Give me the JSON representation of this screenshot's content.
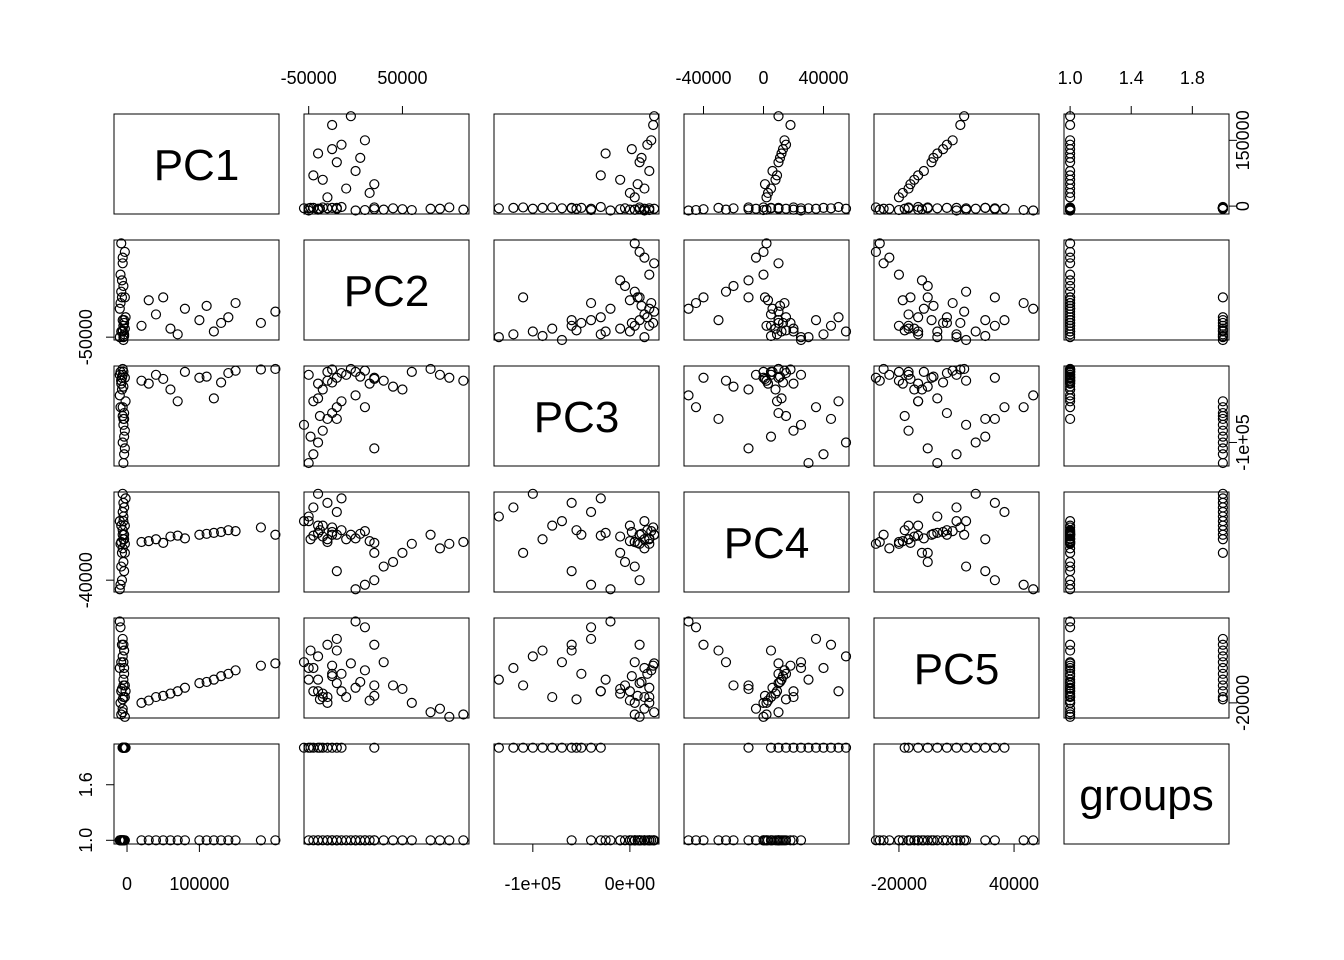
{
  "chart_data": {
    "type": "scatter_matrix",
    "variables": [
      {
        "name": "PC1",
        "lim": [
          -18000,
          210000
        ],
        "xticks": [
          0,
          100000
        ],
        "yticks": [
          0,
          150000
        ],
        "values": [
          20000,
          40000,
          60000,
          80000,
          100000,
          120000,
          140000,
          150000,
          30000,
          70000,
          110000,
          130000,
          50000,
          185000,
          205000,
          -8000,
          -6000,
          -9000,
          -5000,
          -7000,
          -10000,
          -4000,
          -8000,
          -6000,
          -9000,
          -5000,
          -7000,
          -10000,
          -3000,
          -8000,
          -5000,
          -4000,
          -6000,
          -3000,
          -5000,
          -4000,
          -6000,
          -2000,
          -5000,
          -3000,
          -4000,
          -6000
        ]
      },
      {
        "name": "PC2",
        "lim": [
          -55000,
          121000
        ],
        "xticks": [
          -50000,
          50000
        ],
        "yticks": [
          -50000
        ],
        "values": [
          -30000,
          -10000,
          -35000,
          0,
          -20000,
          -40000,
          -15000,
          10000,
          15000,
          -45000,
          5000,
          -25000,
          20000,
          -25000,
          -5000,
          115000,
          90000,
          60000,
          40000,
          20000,
          0,
          -20000,
          -40000,
          80000,
          10000,
          -30000,
          50000,
          -50000,
          100000,
          30000,
          -50000,
          -45000,
          -40000,
          -35000,
          -30000,
          -25000,
          -20000,
          -15000,
          -55000,
          20000,
          -48000,
          -38000
        ]
      },
      {
        "name": "PC3",
        "lim": [
          -140000,
          30000
        ],
        "xticks": [
          {
            "value": -100000,
            "label": "-1e+05"
          },
          {
            "value": 0,
            "label": "0e+00"
          }
        ],
        "yticks": [
          {
            "value": -100000,
            "label": "-1e+05"
          }
        ],
        "values": [
          5000,
          15000,
          -10000,
          20000,
          10000,
          -25000,
          18000,
          22000,
          0,
          -30000,
          12000,
          2000,
          8000,
          24000,
          25000,
          5000,
          15000,
          20000,
          -5000,
          10000,
          -20000,
          -60000,
          0,
          25000,
          -40000,
          20000,
          -10000,
          15000,
          10000,
          5000,
          -135000,
          -120000,
          -100000,
          -80000,
          -60000,
          -50000,
          -40000,
          -30000,
          -70000,
          -110000,
          -90000,
          -55000
        ]
      },
      {
        "name": "PC4",
        "lim": [
          -53000,
          57000
        ],
        "xticks": [
          -40000,
          0,
          40000
        ],
        "yticks": [
          -40000
        ],
        "values": [
          2000,
          5000,
          8000,
          6000,
          10000,
          12000,
          15000,
          14000,
          3000,
          9000,
          11000,
          13000,
          1000,
          18000,
          10000,
          2000,
          -5000,
          0,
          -20000,
          -40000,
          -50000,
          -30000,
          20000,
          10000,
          -45000,
          5000,
          -10000,
          25000,
          0,
          -25000,
          30000,
          40000,
          55000,
          20000,
          45000,
          10000,
          35000,
          50000,
          25000,
          -10000,
          5000,
          15000
        ]
      },
      {
        "name": "PC5",
        "lim": [
          -33000,
          53000
        ],
        "xticks": [
          -20000,
          40000
        ],
        "yticks": [
          -20000
        ],
        "values": [
          -20000,
          -15000,
          -12000,
          -7000,
          -3000,
          0,
          5000,
          8000,
          -18000,
          -10000,
          -2000,
          3000,
          -14000,
          12000,
          14000,
          -30000,
          -25000,
          -20000,
          -5000,
          30000,
          50000,
          25000,
          -10000,
          -28000,
          45000,
          -15000,
          -8000,
          10000,
          -32000,
          15000,
          0,
          10000,
          20000,
          -15000,
          30000,
          5000,
          35000,
          -10000,
          15000,
          -5000,
          25000,
          -17000
        ]
      },
      {
        "name": "groups",
        "lim": [
          0.96,
          2.04
        ],
        "xticks": [
          {
            "value": 1,
            "label": "1.0"
          },
          1.4,
          1.8
        ],
        "yticks": [
          {
            "value": 1,
            "label": "1.0"
          },
          1.6
        ],
        "values": [
          1,
          1,
          1,
          1,
          1,
          1,
          1,
          1,
          1,
          1,
          1,
          1,
          1,
          1,
          1,
          1,
          1,
          1,
          1,
          1,
          1,
          1,
          1,
          1,
          1,
          1,
          1,
          1,
          1,
          1,
          2,
          2,
          2,
          2,
          2,
          2,
          2,
          2,
          2,
          2,
          2,
          2
        ]
      }
    ]
  }
}
